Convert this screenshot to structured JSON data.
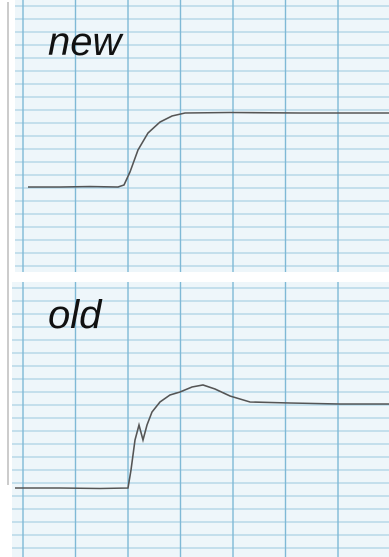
{
  "panels": [
    {
      "label": "new"
    },
    {
      "label": "old"
    }
  ]
}
